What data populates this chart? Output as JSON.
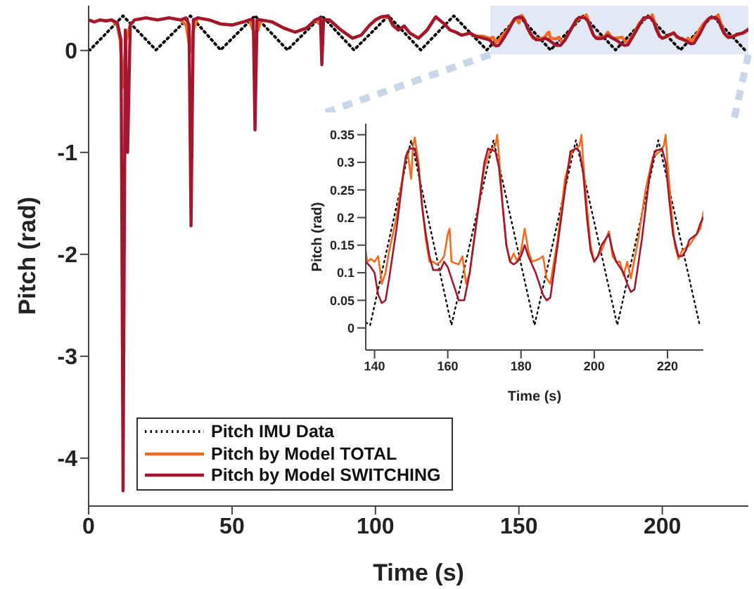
{
  "chart_data": [
    {
      "type": "line",
      "xlabel": "Time (s)",
      "ylabel": "Pitch (rad)",
      "xlim": [
        0,
        230
      ],
      "ylim": [
        -4.47,
        0.44
      ],
      "xticks": [
        0,
        50,
        100,
        150,
        200
      ],
      "yticks": [
        -4,
        -3,
        -2,
        -1,
        0
      ],
      "legend": "bottom left",
      "bands": [
        {
          "axis": "x",
          "from": 140,
          "to": 230,
          "color": "#e3e9f4"
        }
      ],
      "series": [
        {
          "name": "Pitch IMU Data",
          "color": "#000000",
          "line_style": "dotted",
          "x": [
            0,
            0.5,
            12,
            23.5,
            35.5,
            46,
            58,
            69.3,
            81.3,
            92.5,
            104.5,
            115.8,
            127.3,
            138.8,
            150,
            161,
            172.5,
            183.7,
            195,
            206.3,
            217.5,
            228.8
          ],
          "values": [
            0.01,
            0.005,
            0.34,
            0.005,
            0.34,
            0.005,
            0.34,
            0.005,
            0.34,
            0.005,
            0.34,
            0.005,
            0.34,
            0.005,
            0.34,
            0.005,
            0.34,
            0.005,
            0.34,
            0.005,
            0.34,
            0.005
          ]
        },
        {
          "name": "Pitch by Model TOTAL",
          "color": "#f26b21",
          "line_style": "solid",
          "x": [
            0,
            2,
            4,
            6,
            8,
            10,
            11,
            12,
            13,
            14.5,
            16,
            20,
            24,
            28,
            32,
            34,
            35.5,
            36.5,
            38,
            42,
            46,
            50,
            54,
            56,
            58,
            59,
            60,
            64,
            68,
            72,
            76,
            79,
            81,
            82,
            84,
            88,
            92,
            95,
            98,
            100,
            102,
            104.5,
            106,
            108,
            110,
            112,
            115,
            118,
            121,
            124,
            126,
            128,
            130,
            133,
            135,
            137.6,
            139,
            140,
            141,
            142,
            143,
            144,
            146,
            148,
            149,
            150,
            150.5,
            151,
            152,
            153,
            154,
            155,
            156,
            157,
            158,
            159,
            160,
            160.5,
            161,
            163,
            164,
            165,
            166,
            168,
            170,
            171.5,
            173,
            173.5,
            174,
            175,
            176,
            177,
            178,
            179,
            180,
            181,
            182,
            183,
            185,
            186,
            187,
            188,
            190,
            192,
            194,
            196,
            196.5,
            197,
            198,
            199,
            200,
            202,
            204,
            205,
            206,
            207,
            208,
            209,
            210,
            212,
            214,
            216,
            218,
            219,
            219.5,
            220,
            221,
            222,
            223,
            224,
            226,
            228,
            229,
            229.8
          ],
          "values": [
            0.3,
            0.28,
            0.3,
            0.29,
            0.3,
            0.25,
            0.1,
            -0.36,
            0.1,
            0.25,
            0.3,
            0.32,
            0.3,
            0.32,
            0.3,
            0.25,
            -0.01,
            0.2,
            0.32,
            0.3,
            0.26,
            0.25,
            0.28,
            0.3,
            0.15,
            0.2,
            0.3,
            0.28,
            0.22,
            0.18,
            0.22,
            0.3,
            0.25,
            0.3,
            0.3,
            0.2,
            0.12,
            0.15,
            0.25,
            0.3,
            0.33,
            0.33,
            0.25,
            0.2,
            0.24,
            0.17,
            0.12,
            0.2,
            0.33,
            0.26,
            0.2,
            0.18,
            0.15,
            0.17,
            0.14,
            0.14,
            0.125,
            0.12,
            0.13,
            0.08,
            0.1,
            0.14,
            0.2,
            0.29,
            0.32,
            0.27,
            0.33,
            0.345,
            0.3,
            0.22,
            0.16,
            0.12,
            0.12,
            0.115,
            0.12,
            0.13,
            0.17,
            0.18,
            0.12,
            0.115,
            0.13,
            0.08,
            0.1,
            0.2,
            0.29,
            0.32,
            0.33,
            0.35,
            0.31,
            0.22,
            0.15,
            0.12,
            0.135,
            0.12,
            0.14,
            0.18,
            0.14,
            0.12,
            0.125,
            0.13,
            0.09,
            0.08,
            0.16,
            0.27,
            0.32,
            0.33,
            0.35,
            0.3,
            0.22,
            0.15,
            0.12,
            0.14,
            0.175,
            0.13,
            0.12,
            0.12,
            0.095,
            0.12,
            0.09,
            0.16,
            0.25,
            0.31,
            0.32,
            0.33,
            0.35,
            0.3,
            0.22,
            0.15,
            0.125,
            0.14,
            0.15,
            0.17,
            0.18,
            0.21
          ]
        },
        {
          "name": "Pitch by Model SWITCHING",
          "color": "#a3172e",
          "line_style": "solid",
          "x": [
            0,
            2,
            4,
            6,
            8,
            10,
            11.3,
            12,
            12.8,
            13.6,
            14.5,
            16,
            20,
            24,
            28,
            32,
            34,
            35,
            35.7,
            36.5,
            38,
            42,
            46,
            50,
            54,
            56,
            57.4,
            58,
            58.7,
            60,
            64,
            68,
            72,
            76,
            79,
            80.8,
            81.3,
            81.9,
            84,
            88,
            92,
            95,
            98,
            100,
            102,
            104.5,
            106,
            108,
            110,
            112,
            115,
            118,
            121,
            124,
            126,
            128,
            130,
            133,
            135,
            137.6,
            139,
            140,
            141,
            142,
            143,
            144,
            146,
            147.5,
            148.5,
            149.5,
            151,
            152,
            153,
            154,
            155,
            156,
            158,
            159,
            160,
            161,
            162,
            163,
            164.5,
            166,
            168,
            170,
            171,
            173,
            174,
            175,
            176,
            177,
            178,
            179,
            180,
            181,
            182,
            184,
            186,
            187,
            188,
            190,
            192,
            193.5,
            195,
            196,
            197,
            198,
            199,
            200,
            201,
            202,
            204,
            205,
            206,
            208,
            209,
            210,
            211,
            213,
            215,
            216.5,
            218.5,
            219.5,
            220.5,
            221.5,
            223,
            224,
            225,
            226,
            227,
            228,
            229,
            229.8
          ],
          "values": [
            0.3,
            0.28,
            0.3,
            0.29,
            0.3,
            0.27,
            0.1,
            -4.32,
            0.2,
            -1.0,
            0.25,
            0.3,
            0.32,
            0.3,
            0.32,
            0.3,
            0.32,
            0.25,
            -1.72,
            0.3,
            0.32,
            0.3,
            0.26,
            0.25,
            0.28,
            0.3,
            0.3,
            -0.78,
            0.3,
            0.3,
            0.28,
            0.22,
            0.18,
            0.22,
            0.3,
            0.32,
            -0.14,
            0.3,
            0.3,
            0.2,
            0.12,
            0.15,
            0.25,
            0.3,
            0.33,
            0.34,
            0.25,
            0.2,
            0.24,
            0.17,
            0.12,
            0.2,
            0.33,
            0.26,
            0.2,
            0.18,
            0.15,
            0.17,
            0.14,
            0.12,
            0.11,
            0.1,
            0.06,
            0.045,
            0.05,
            0.09,
            0.18,
            0.26,
            0.31,
            0.325,
            0.325,
            0.29,
            0.22,
            0.17,
            0.13,
            0.105,
            0.105,
            0.12,
            0.11,
            0.09,
            0.07,
            0.05,
            0.05,
            0.1,
            0.2,
            0.3,
            0.325,
            0.32,
            0.29,
            0.22,
            0.15,
            0.12,
            0.115,
            0.12,
            0.13,
            0.15,
            0.13,
            0.1,
            0.06,
            0.05,
            0.055,
            0.15,
            0.25,
            0.32,
            0.325,
            0.32,
            0.28,
            0.2,
            0.14,
            0.12,
            0.13,
            0.15,
            0.17,
            0.14,
            0.12,
            0.1,
            0.08,
            0.065,
            0.07,
            0.16,
            0.27,
            0.32,
            0.325,
            0.3,
            0.23,
            0.17,
            0.13,
            0.13,
            0.14,
            0.16,
            0.165,
            0.17,
            0.19,
            0.2
          ]
        }
      ]
    },
    {
      "type": "line",
      "xlabel": "Time (s)",
      "ylabel": "Pitch (rad)",
      "xlim": [
        137.6,
        229.8
      ],
      "ylim": [
        -0.04,
        0.37
      ],
      "xticks": [
        140,
        160,
        180,
        200,
        220
      ],
      "yticks": [
        0,
        0.05,
        0.1,
        0.15,
        0.2,
        0.25,
        0.3,
        0.35
      ],
      "series": [
        {
          "color": "#000000",
          "line_style": "dotted",
          "x": [
            137.6,
            138.8,
            150,
            161,
            172.5,
            183.7,
            195,
            206.3,
            217.5,
            228.8
          ],
          "values": [
            0.01,
            0.005,
            0.34,
            0.005,
            0.34,
            0.005,
            0.34,
            0.005,
            0.34,
            0.005
          ]
        },
        {
          "color": "#f26b21",
          "line_style": "solid",
          "x": [
            137.6,
            138,
            139,
            140,
            141,
            142,
            143,
            144,
            146,
            148,
            149,
            150,
            150.5,
            151,
            152,
            153,
            154,
            155,
            156,
            157,
            158,
            159,
            160,
            160.5,
            161,
            163,
            164,
            165,
            166,
            168,
            170,
            171.5,
            173,
            173.5,
            174,
            175,
            176,
            177,
            178,
            179,
            180,
            181,
            182,
            183,
            185,
            186,
            187,
            188,
            190,
            192,
            194,
            196,
            196.5,
            197,
            198,
            199,
            200,
            202,
            204,
            205,
            206,
            207,
            208,
            209,
            210,
            212,
            214,
            216,
            218,
            219,
            219.5,
            220,
            221,
            222,
            223,
            224,
            226,
            228,
            229,
            229.8
          ],
          "values": [
            0.14,
            0.12,
            0.125,
            0.12,
            0.13,
            0.08,
            0.1,
            0.14,
            0.2,
            0.29,
            0.32,
            0.27,
            0.33,
            0.345,
            0.3,
            0.22,
            0.16,
            0.12,
            0.12,
            0.115,
            0.12,
            0.13,
            0.17,
            0.18,
            0.12,
            0.115,
            0.13,
            0.08,
            0.1,
            0.2,
            0.29,
            0.32,
            0.33,
            0.35,
            0.31,
            0.22,
            0.15,
            0.12,
            0.135,
            0.12,
            0.14,
            0.18,
            0.14,
            0.12,
            0.125,
            0.13,
            0.09,
            0.08,
            0.16,
            0.27,
            0.32,
            0.33,
            0.35,
            0.3,
            0.22,
            0.15,
            0.12,
            0.14,
            0.175,
            0.13,
            0.12,
            0.12,
            0.095,
            0.12,
            0.09,
            0.16,
            0.25,
            0.31,
            0.32,
            0.33,
            0.35,
            0.3,
            0.22,
            0.15,
            0.125,
            0.14,
            0.15,
            0.17,
            0.18,
            0.21
          ]
        },
        {
          "color": "#a3172e",
          "line_style": "solid",
          "x": [
            137.6,
            139,
            140,
            141,
            142,
            143,
            144,
            146,
            147.5,
            148.5,
            149.5,
            151,
            152,
            153,
            154,
            155,
            156,
            158,
            159,
            160,
            161,
            162,
            163,
            164.5,
            166,
            168,
            170,
            171,
            173,
            174,
            175,
            176,
            177,
            178,
            179,
            180,
            181,
            182,
            184,
            186,
            187,
            188,
            190,
            192,
            193.5,
            195,
            196,
            197,
            198,
            199,
            200,
            201,
            202,
            204,
            205,
            206,
            208,
            209,
            210,
            211,
            213,
            215,
            216.5,
            218.5,
            219.5,
            220.5,
            221.5,
            223,
            224,
            225,
            226,
            227,
            228,
            229,
            229.8
          ],
          "values": [
            0.12,
            0.11,
            0.1,
            0.06,
            0.045,
            0.05,
            0.09,
            0.18,
            0.26,
            0.31,
            0.325,
            0.325,
            0.29,
            0.22,
            0.17,
            0.13,
            0.105,
            0.105,
            0.12,
            0.11,
            0.09,
            0.07,
            0.05,
            0.05,
            0.1,
            0.2,
            0.3,
            0.325,
            0.32,
            0.29,
            0.22,
            0.15,
            0.12,
            0.115,
            0.12,
            0.13,
            0.15,
            0.13,
            0.1,
            0.06,
            0.05,
            0.055,
            0.15,
            0.25,
            0.32,
            0.325,
            0.32,
            0.28,
            0.2,
            0.14,
            0.12,
            0.13,
            0.15,
            0.17,
            0.14,
            0.12,
            0.1,
            0.08,
            0.065,
            0.07,
            0.16,
            0.27,
            0.32,
            0.325,
            0.3,
            0.23,
            0.17,
            0.13,
            0.13,
            0.14,
            0.16,
            0.165,
            0.17,
            0.19,
            0.2
          ]
        }
      ]
    }
  ]
}
